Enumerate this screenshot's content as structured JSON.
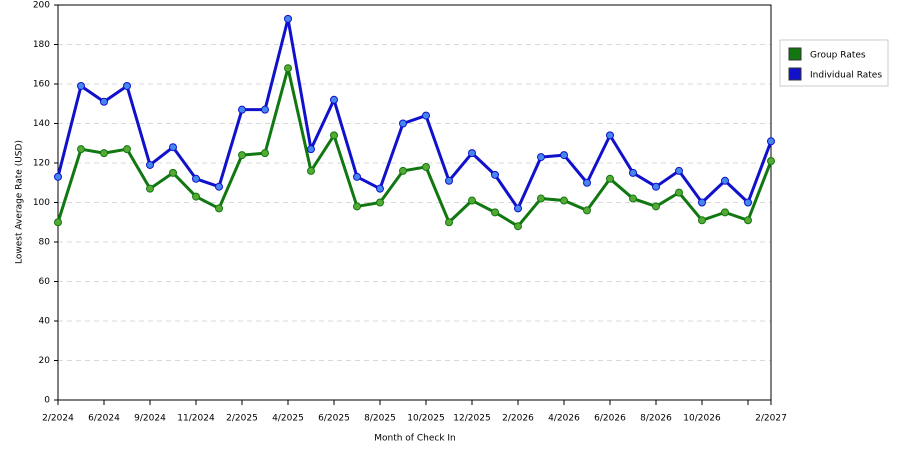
{
  "chart_data": {
    "type": "line",
    "x_label": "Month of Check In",
    "y_label": "Lowest Average Rate (USD)",
    "categories": [
      "2/2024",
      null,
      "6/2024",
      null,
      "9/2024",
      null,
      "11/2024",
      null,
      "2/2025",
      null,
      "4/2025",
      null,
      "6/2025",
      null,
      "8/2025",
      null,
      "10/2025",
      null,
      "12/2025",
      null,
      "2/2026",
      null,
      "4/2026",
      null,
      "6/2026",
      null,
      "8/2026",
      null,
      "10/2026",
      null,
      null,
      "2/2027"
    ],
    "series": [
      {
        "name": "Group Rates",
        "color": "#117711",
        "marker_color": "#55aa33",
        "values": [
          90,
          127,
          125,
          127,
          107,
          115,
          103,
          97,
          124,
          125,
          168,
          116,
          134,
          98,
          100,
          116,
          118,
          90,
          101,
          95,
          88,
          102,
          101,
          96,
          112,
          102,
          98,
          105,
          91,
          95,
          91,
          121
        ]
      },
      {
        "name": "Individual Rates",
        "color": "#1111cc",
        "marker_color": "#4488ee",
        "values": [
          113,
          159,
          151,
          159,
          119,
          128,
          112,
          108,
          147,
          147,
          193,
          127,
          152,
          113,
          107,
          140,
          144,
          111,
          125,
          114,
          97,
          123,
          124,
          110,
          134,
          115,
          108,
          116,
          100,
          111,
          100,
          131
        ]
      }
    ],
    "ylim": [
      0,
      200
    ],
    "yticks": [
      0,
      20,
      40,
      60,
      80,
      100,
      120,
      140,
      160,
      180,
      200
    ],
    "tick_indices": [
      0,
      2,
      4,
      6,
      8,
      10,
      12,
      14,
      16,
      18,
      20,
      22,
      24,
      26,
      28,
      30,
      31
    ],
    "grid": true,
    "legend": "right"
  }
}
